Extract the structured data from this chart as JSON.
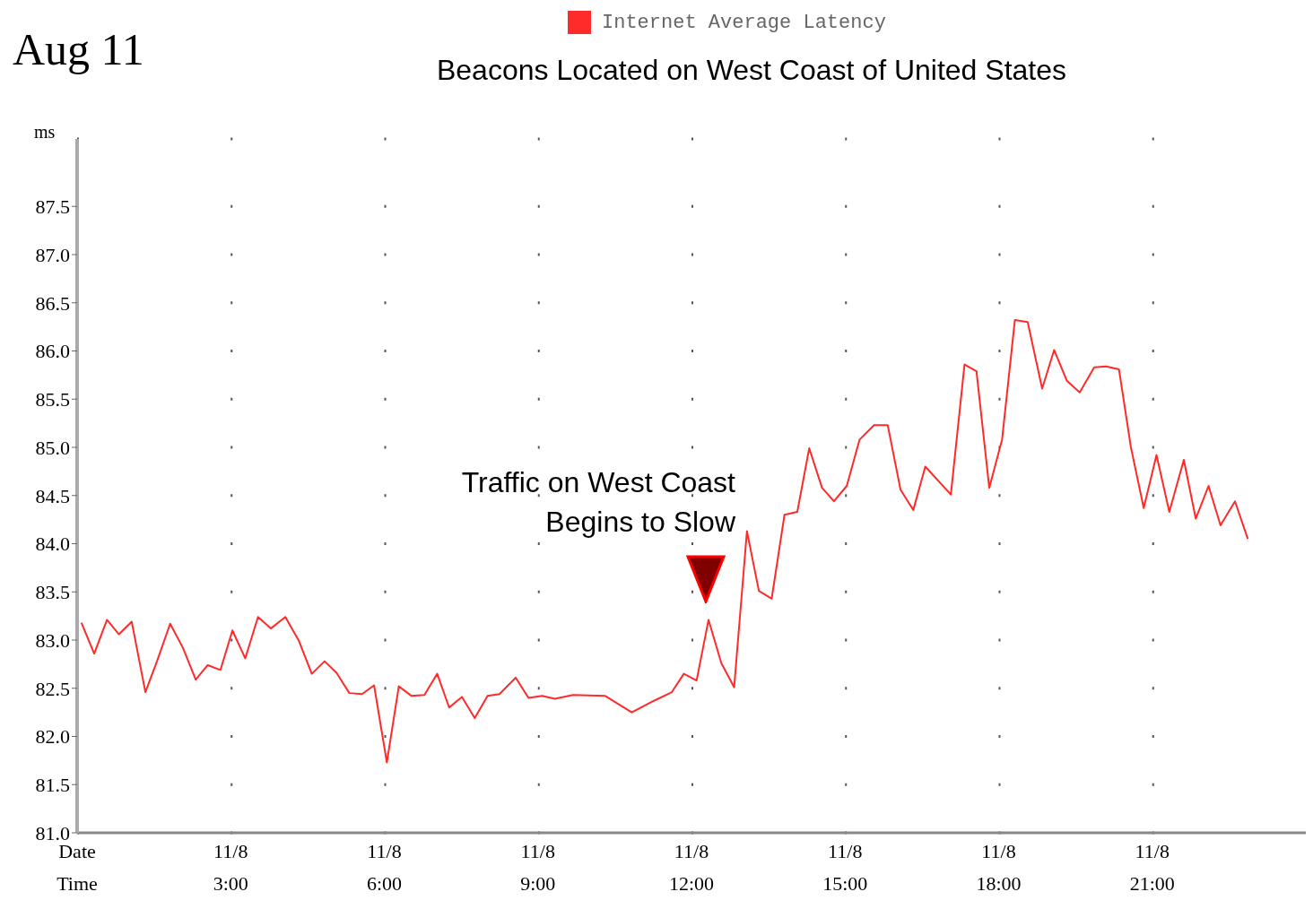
{
  "chart_data": {
    "type": "line",
    "title": "Beacons Located on West Coast of United States",
    "ylabel": "ms",
    "annotations": [
      "Aug 11",
      "Traffic on West Coast\nBegins to Slow"
    ],
    "legend": "top",
    "grid": true,
    "marker": "none",
    "line_style": "solid",
    "xlim": [
      "--08-11T00:00",
      "--08-12T00:00"
    ],
    "xticks": [
      {
        "value": "--08-11T00:00",
        "label": "Date\nTime"
      },
      {
        "value": "--08-11T03:00",
        "label": "11/8\n3:00"
      },
      {
        "value": "--08-11T06:00",
        "label": "11/8\n6:00"
      },
      {
        "value": "--08-11T09:00",
        "label": "11/8\n9:00"
      },
      {
        "value": "--08-11T12:00",
        "label": "11/8\n12:00"
      },
      {
        "value": "--08-11T15:00",
        "label": "11/8\n15:00"
      },
      {
        "value": "--08-11T18:00",
        "label": "11/8\n18:00"
      },
      {
        "value": "--08-11T21:00",
        "label": "11/8\n21:00"
      }
    ],
    "ylim": [
      81,
      88.2
    ],
    "yticks": [
      {
        "value": 81,
        "label": "81.0"
      },
      {
        "value": 81.5,
        "label": "81.5"
      },
      {
        "value": 82,
        "label": "82.0"
      },
      {
        "value": 82.5,
        "label": "82.5"
      },
      {
        "value": 83,
        "label": "83.0"
      },
      {
        "value": 83.5,
        "label": "83.5"
      },
      {
        "value": 84,
        "label": "84.0"
      },
      {
        "value": 84.5,
        "label": "84.5"
      },
      {
        "value": 85,
        "label": "85.0"
      },
      {
        "value": 85.5,
        "label": "85.5"
      },
      {
        "value": 86,
        "label": "86.0"
      },
      {
        "value": 86.5,
        "label": "86.5"
      },
      {
        "value": 87,
        "label": "87.0"
      },
      {
        "value": 87.5,
        "label": "87.5"
      }
    ],
    "x": [
      "--08-11T00:05",
      "--08-11T00:20",
      "--08-11T00:35",
      "--08-11T00:49",
      "--08-11T01:04",
      "--08-11T01:20",
      "--08-11T01:34",
      "--08-11T01:49",
      "--08-11T02:04",
      "--08-11T02:19",
      "--08-11T02:33",
      "--08-11T02:48",
      "--08-11T03:02",
      "--08-11T03:17",
      "--08-11T03:32",
      "--08-11T03:47",
      "--08-11T04:04",
      "--08-11T04:20",
      "--08-11T04:35",
      "--08-11T04:50",
      "--08-11T05:04",
      "--08-11T05:19",
      "--08-11T05:34",
      "--08-11T05:48",
      "--08-11T06:03",
      "--08-11T06:17",
      "--08-11T06:32",
      "--08-11T06:47",
      "--08-11T07:02",
      "--08-11T07:16",
      "--08-11T07:31",
      "--08-11T07:46",
      "--08-11T08:01",
      "--08-11T08:15",
      "--08-11T08:34",
      "--08-11T08:49",
      "--08-11T09:05",
      "--08-11T09:20",
      "--08-11T09:41",
      "--08-11T10:19",
      "--08-11T10:50",
      "--08-11T11:16",
      "--08-11T11:37",
      "--08-11T11:51",
      "--08-11T12:06",
      "--08-11T12:20",
      "--08-11T12:35",
      "--08-11T12:50",
      "--08-11T13:05",
      "--08-11T13:19",
      "--08-11T13:34",
      "--08-11T13:49",
      "--08-11T14:04",
      "--08-11T14:18",
      "--08-11T14:33",
      "--08-11T14:47",
      "--08-11T15:02",
      "--08-11T15:17",
      "--08-11T15:34",
      "--08-11T15:50",
      "--08-11T16:05",
      "--08-11T16:20",
      "--08-11T16:34",
      "--08-11T17:04",
      "--08-11T17:20",
      "--08-11T17:34",
      "--08-11T17:49",
      "--08-11T18:04",
      "--08-11T18:19",
      "--08-11T18:34",
      "--08-11T18:51",
      "--08-11T19:05",
      "--08-11T19:20",
      "--08-11T19:35",
      "--08-11T19:52",
      "--08-11T20:06",
      "--08-11T20:21",
      "--08-11T20:35",
      "--08-11T20:50",
      "--08-11T21:05",
      "--08-11T21:20",
      "--08-11T21:37",
      "--08-11T21:51",
      "--08-11T22:06",
      "--08-11T22:20",
      "--08-11T22:37",
      "--08-11T22:52"
    ],
    "series": [
      {
        "name": "Internet Average Latency",
        "color": "#ff2a2a",
        "values": [
          83.18,
          82.86,
          83.21,
          83.06,
          83.19,
          82.46,
          82.79,
          83.17,
          82.92,
          82.59,
          82.74,
          82.69,
          83.1,
          82.81,
          83.24,
          83.12,
          83.24,
          82.99,
          82.65,
          82.78,
          82.66,
          82.45,
          82.44,
          82.53,
          81.73,
          82.52,
          82.42,
          82.43,
          82.65,
          82.3,
          82.41,
          82.19,
          82.42,
          82.44,
          82.61,
          82.4,
          82.42,
          82.39,
          82.43,
          82.42,
          82.25,
          82.37,
          82.46,
          82.65,
          82.58,
          83.21,
          82.76,
          82.51,
          84.13,
          83.51,
          83.43,
          84.3,
          84.33,
          84.99,
          84.58,
          84.44,
          84.6,
          85.08,
          85.23,
          85.23,
          84.56,
          84.35,
          84.8,
          84.51,
          85.86,
          85.79,
          84.58,
          85.08,
          86.32,
          86.3,
          85.61,
          86.01,
          85.69,
          85.57,
          85.83,
          85.84,
          85.81,
          85,
          84.37,
          84.92,
          84.33,
          84.87,
          84.26,
          84.6,
          84.19,
          84.44,
          84.05
        ]
      }
    ]
  }
}
